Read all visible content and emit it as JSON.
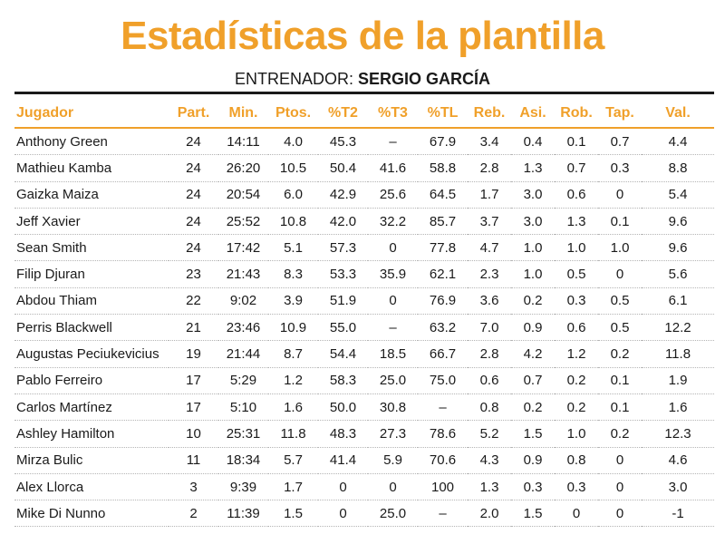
{
  "title": "Estadísticas de la plantilla",
  "coach_label": "ENTRENADOR: ",
  "coach_name": "SERGIO GARCÍA",
  "colors": {
    "accent": "#f0a02a",
    "text": "#1a1a1a"
  },
  "columns": [
    "Jugador",
    "Part.",
    "Min.",
    "Ptos.",
    "%T2",
    "%T3",
    "%TL",
    "Reb.",
    "Asi.",
    "Rob.",
    "Tap.",
    "Val."
  ],
  "rows": [
    [
      "Anthony Green",
      "24",
      "14:11",
      "4.0",
      "45.3",
      "–",
      "67.9",
      "3.4",
      "0.4",
      "0.1",
      "0.7",
      "4.4"
    ],
    [
      "Mathieu Kamba",
      "24",
      "26:20",
      "10.5",
      "50.4",
      "41.6",
      "58.8",
      "2.8",
      "1.3",
      "0.7",
      "0.3",
      "8.8"
    ],
    [
      "Gaizka Maiza",
      "24",
      "20:54",
      "6.0",
      "42.9",
      "25.6",
      "64.5",
      "1.7",
      "3.0",
      "0.6",
      "0",
      "5.4"
    ],
    [
      "Jeff Xavier",
      "24",
      "25:52",
      "10.8",
      "42.0",
      "32.2",
      "85.7",
      "3.7",
      "3.0",
      "1.3",
      "0.1",
      "9.6"
    ],
    [
      "Sean Smith",
      "24",
      "17:42",
      "5.1",
      "57.3",
      "0",
      "77.8",
      "4.7",
      "1.0",
      "1.0",
      "1.0",
      "9.6"
    ],
    [
      "Filip Djuran",
      "23",
      "21:43",
      "8.3",
      "53.3",
      "35.9",
      "62.1",
      "2.3",
      "1.0",
      "0.5",
      "0",
      "5.6"
    ],
    [
      "Abdou Thiam",
      "22",
      "9:02",
      "3.9",
      "51.9",
      "0",
      "76.9",
      "3.6",
      "0.2",
      "0.3",
      "0.5",
      "6.1"
    ],
    [
      "Perris Blackwell",
      "21",
      "23:46",
      "10.9",
      "55.0",
      "–",
      "63.2",
      "7.0",
      "0.9",
      "0.6",
      "0.5",
      "12.2"
    ],
    [
      "Augustas Peciukevicius",
      "19",
      "21:44",
      "8.7",
      "54.4",
      "18.5",
      "66.7",
      "2.8",
      "4.2",
      "1.2",
      "0.2",
      "11.8"
    ],
    [
      "Pablo Ferreiro",
      "17",
      "5:29",
      "1.2",
      "58.3",
      "25.0",
      "75.0",
      "0.6",
      "0.7",
      "0.2",
      "0.1",
      "1.9"
    ],
    [
      "Carlos Martínez",
      "17",
      "5:10",
      "1.6",
      "50.0",
      "30.8",
      "–",
      "0.8",
      "0.2",
      "0.2",
      "0.1",
      "1.6"
    ],
    [
      "Ashley Hamilton",
      "10",
      "25:31",
      "11.8",
      "48.3",
      "27.3",
      "78.6",
      "5.2",
      "1.5",
      "1.0",
      "0.2",
      "12.3"
    ],
    [
      "Mirza Bulic",
      "11",
      "18:34",
      "5.7",
      "41.4",
      "5.9",
      "70.6",
      "4.3",
      "0.9",
      "0.8",
      "0",
      "4.6"
    ],
    [
      "Alex Llorca",
      "3",
      "9:39",
      "1.7",
      "0",
      "0",
      "100",
      "1.3",
      "0.3",
      "0.3",
      "0",
      "3.0"
    ],
    [
      "Mike Di Nunno",
      "2",
      "11:39",
      "1.5",
      "0",
      "25.0",
      "–",
      "2.0",
      "1.5",
      "0",
      "0",
      "-1"
    ]
  ]
}
